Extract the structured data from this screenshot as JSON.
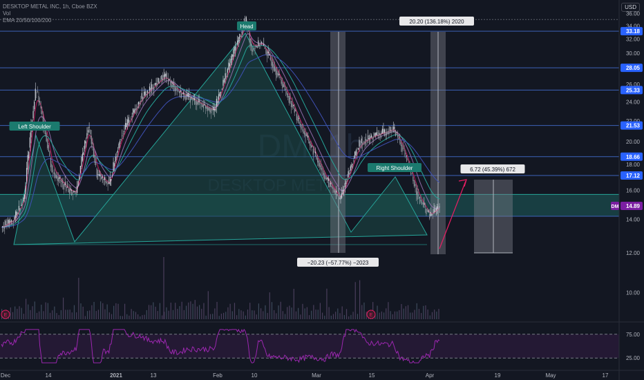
{
  "header": {
    "symbol_line": "DESKTOP METAL INC, 1h, Cboe BZX",
    "vol_line": "Vol",
    "ema_line": "EMA 20/50/100/200",
    "currency": "USD"
  },
  "watermark": {
    "ticker": "DM, 1h",
    "name": "DESKTOP METAL"
  },
  "chart_data": {
    "type": "candlestick",
    "price_axis": {
      "ticks": [
        36.0,
        34.0,
        32.0,
        30.0,
        28.0,
        26.0,
        24.0,
        22.0,
        20.0,
        18.0,
        16.0,
        14.0,
        12.0,
        10.0
      ],
      "range": [
        9.0,
        36.5
      ],
      "scale": "log"
    },
    "time_axis": {
      "ticks": [
        "Dec",
        "14",
        "2021",
        "13",
        "Feb",
        "10",
        "Mar",
        "15",
        "Apr",
        "19",
        "May",
        "17"
      ]
    },
    "horizontal_levels": [
      33.18,
      28.05,
      25.33,
      21.53,
      18.66,
      17.12
    ],
    "last_price": {
      "symbol": "DM",
      "value": 14.89
    },
    "price_path": [
      [
        "Dec",
        13.5
      ],
      [
        "Dec",
        14.0
      ],
      [
        "Dec",
        15.5
      ],
      [
        "14",
        25.5
      ],
      [
        "14",
        17.5
      ],
      [
        "14",
        16.5
      ],
      [
        "14",
        16.0
      ],
      [
        "14",
        15.8
      ],
      [
        "2021",
        21.5
      ],
      [
        "2021",
        17.2
      ],
      [
        "2021",
        16.4
      ],
      [
        "13",
        20.5
      ],
      [
        "13",
        24.5
      ],
      [
        "13",
        27.0
      ],
      [
        "13",
        25.0
      ],
      [
        "Feb",
        23.0
      ],
      [
        "Feb",
        28.0
      ],
      [
        "10",
        34.9
      ],
      [
        "10",
        30.5
      ],
      [
        "10",
        31.5
      ],
      [
        "10",
        27.0
      ],
      [
        "Mar",
        21.5
      ],
      [
        "Mar",
        17.0
      ],
      [
        "Mar",
        15.3
      ],
      [
        "15",
        19.8
      ],
      [
        "15",
        20.5
      ],
      [
        "15",
        21.2
      ],
      [
        "15",
        19.0
      ],
      [
        "Apr",
        15.5
      ],
      [
        "Apr",
        14.2
      ],
      [
        "Apr",
        14.89
      ]
    ],
    "pattern_labels": [
      "Left Shoulder",
      "Head",
      "Right Shoulder"
    ],
    "neckline_zone": [
      14.2,
      15.7
    ],
    "measurements": [
      {
        "label": "−20.23 (−57.77%) −2023"
      },
      {
        "label": "20.20 (136.18%) 2020"
      },
      {
        "label": "6.72 (45.39%) 672"
      }
    ],
    "rsi": {
      "levels": [
        "75.00",
        "25.00"
      ],
      "upper": 75,
      "lower": 25
    },
    "ema_periods": [
      20,
      50,
      100,
      200
    ],
    "colors": {
      "up": "#d1d4dc",
      "down": "#9598a1",
      "level": "#3d63b9",
      "zone": "#1f6e6a",
      "pattern": "#1b4b47",
      "pattern_edge": "#26a69a",
      "rsi": "#9c27b0",
      "last_price_box": "#7b1fa2",
      "ema20": "#c2185b",
      "ema50": "#8e6aa8",
      "ema100": "#26a69a",
      "ema200": "#3f51b5"
    }
  }
}
